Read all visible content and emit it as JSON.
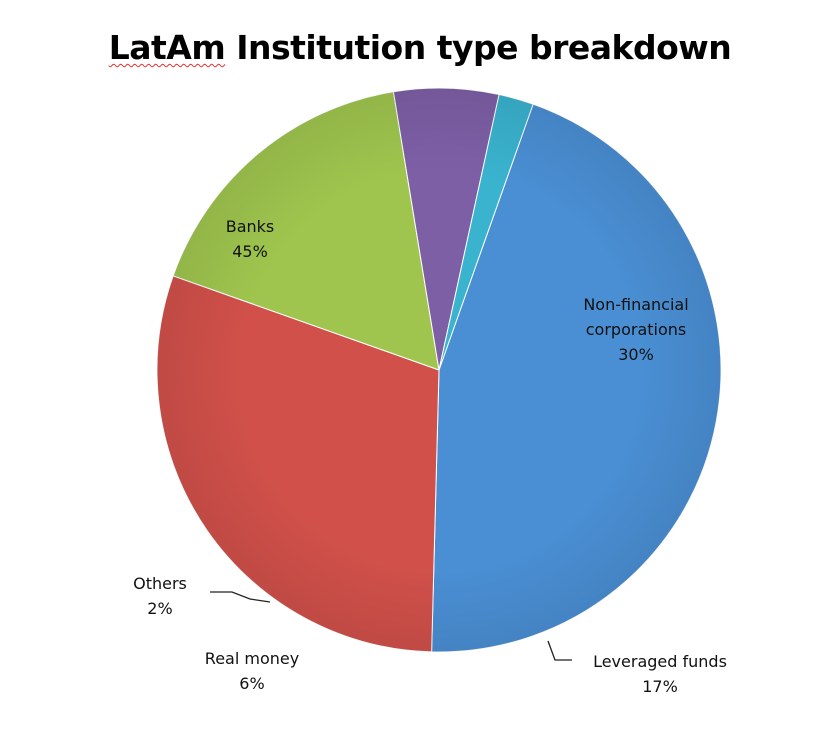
{
  "chart_data": {
    "type": "pie",
    "title_prefix": "LatAm",
    "title_rest": " Institution type breakdown",
    "slices": [
      {
        "name": "Banks",
        "value": 45,
        "label": "45%",
        "color": "#4a8fd4"
      },
      {
        "name": "Non-financial corporations",
        "value": 30,
        "label": "30%",
        "color": "#d1504a"
      },
      {
        "name": "Leveraged funds",
        "value": 17,
        "label": "17%",
        "color": "#9fc54e"
      },
      {
        "name": "Real money",
        "value": 6,
        "label": "6%",
        "color": "#7d5fa6"
      },
      {
        "name": "Others",
        "value": 2,
        "label": "2%",
        "color": "#3ab3cf"
      }
    ]
  }
}
